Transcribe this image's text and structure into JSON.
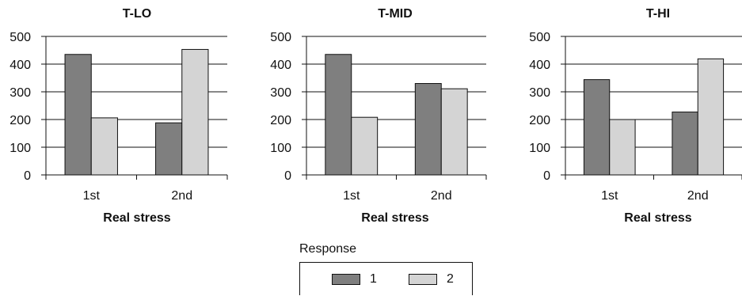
{
  "chart_data": [
    {
      "type": "bar",
      "title": "T-LO",
      "xlabel": "Real stress",
      "ylabel": "",
      "categories": [
        "1st",
        "2nd"
      ],
      "series": [
        {
          "name": "1",
          "values": [
            435,
            188
          ]
        },
        {
          "name": "2",
          "values": [
            206,
            453
          ]
        }
      ],
      "ylim": [
        0,
        500
      ],
      "yticks": [
        "0",
        "100",
        "200",
        "300",
        "400",
        "500"
      ],
      "grid": true
    },
    {
      "type": "bar",
      "title": "T-MID",
      "xlabel": "Real stress",
      "ylabel": "",
      "categories": [
        "1st",
        "2nd"
      ],
      "series": [
        {
          "name": "1",
          "values": [
            435,
            330
          ]
        },
        {
          "name": "2",
          "values": [
            208,
            311
          ]
        }
      ],
      "ylim": [
        0,
        500
      ],
      "yticks": [
        "0",
        "100",
        "200",
        "300",
        "400",
        "500"
      ],
      "grid": true
    },
    {
      "type": "bar",
      "title": "T-HI",
      "xlabel": "Real stress",
      "ylabel": "",
      "categories": [
        "1st",
        "2nd"
      ],
      "series": [
        {
          "name": "1",
          "values": [
            344,
            227
          ]
        },
        {
          "name": "2",
          "values": [
            200,
            419
          ]
        }
      ],
      "ylim": [
        0,
        500
      ],
      "yticks": [
        "0",
        "100",
        "200",
        "300",
        "400",
        "500"
      ],
      "grid": true
    }
  ],
  "legend": {
    "title": "Response",
    "placement": "bottom-center",
    "items": [
      {
        "label": "1",
        "color": "#7f7f7f"
      },
      {
        "label": "2",
        "color": "#d4d4d4"
      }
    ]
  },
  "colors": {
    "series1": "#7f7f7f",
    "series2": "#d4d4d4",
    "axis": "#111111",
    "grid": "#111111"
  }
}
